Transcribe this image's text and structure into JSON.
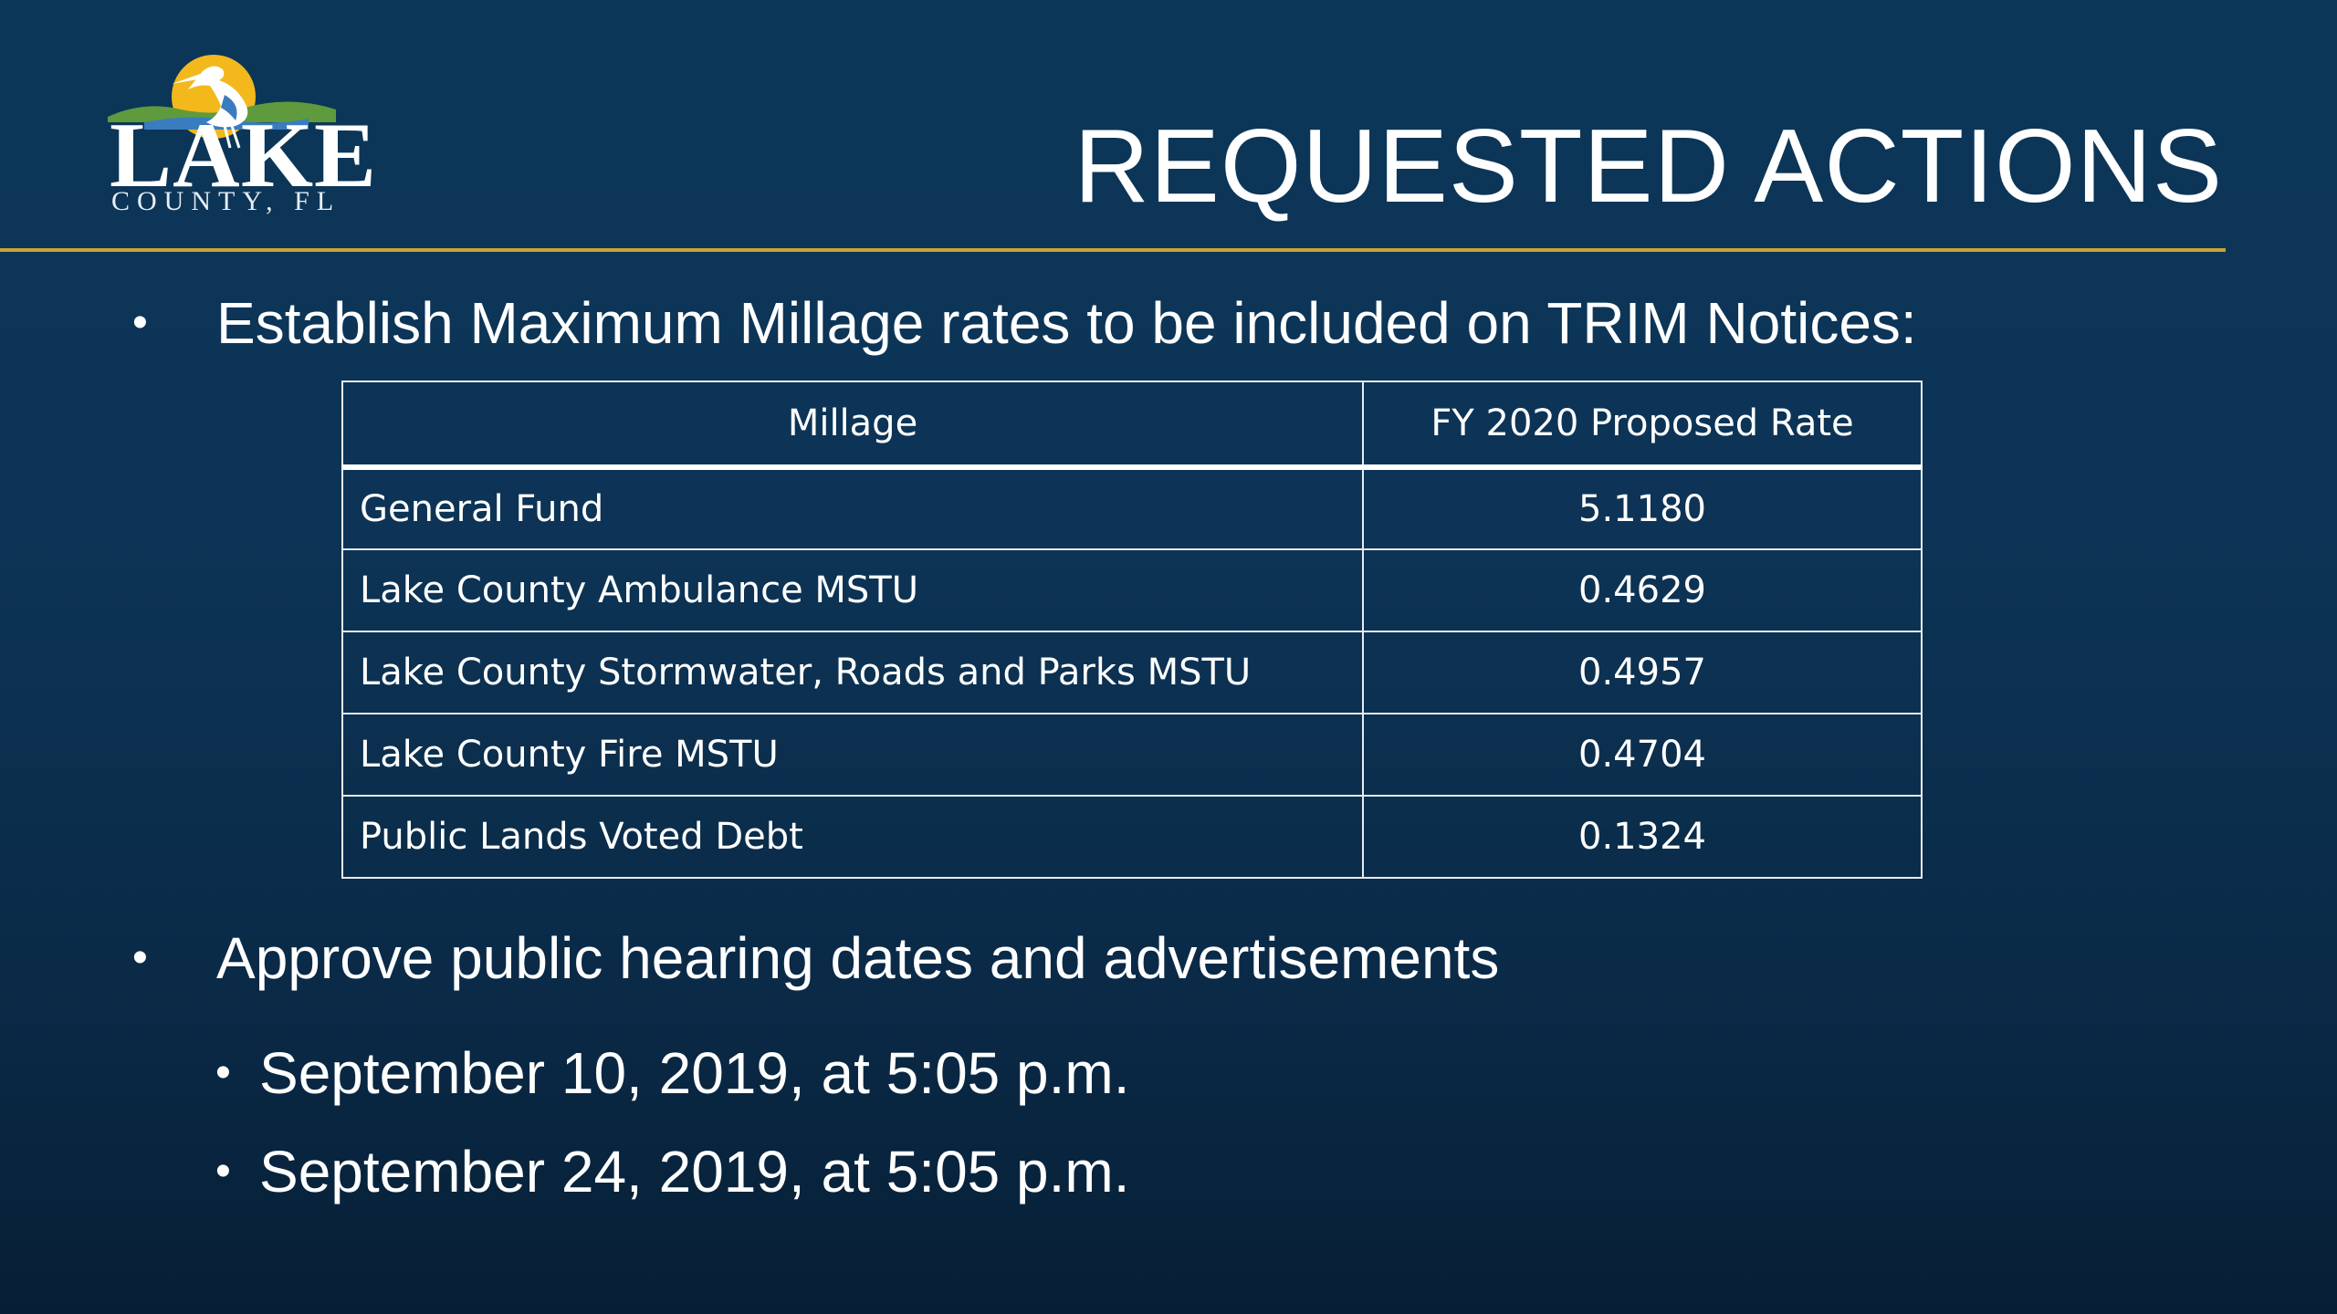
{
  "logo": {
    "word": "LAKE",
    "subtitle": "COUNTY, FL",
    "colors": {
      "sun": "#f2b81c",
      "bird": "#ffffff",
      "hills": "#5f9a3c",
      "water": "#3a7cc0"
    }
  },
  "title": "REQUESTED ACTIONS",
  "colors": {
    "rule": "#c9a230",
    "background": "#0b3658"
  },
  "bullets": {
    "first": "Establish Maximum Millage rates to be included on TRIM Notices:",
    "second": "Approve public hearing dates and advertisements",
    "dates": [
      "September 10, 2019, at 5:05 p.m.",
      "September 24, 2019, at 5:05 p.m."
    ]
  },
  "table": {
    "headers": [
      "Millage",
      "FY 2020 Proposed Rate"
    ],
    "rows": [
      {
        "name": "General Fund",
        "rate": "5.1180"
      },
      {
        "name": "Lake County Ambulance MSTU",
        "rate": "0.4629"
      },
      {
        "name": "Lake County Stormwater, Roads and Parks MSTU",
        "rate": "0.4957"
      },
      {
        "name": "Lake County Fire MSTU",
        "rate": "0.4704"
      },
      {
        "name": "Public Lands Voted Debt",
        "rate": "0.1324"
      }
    ]
  }
}
